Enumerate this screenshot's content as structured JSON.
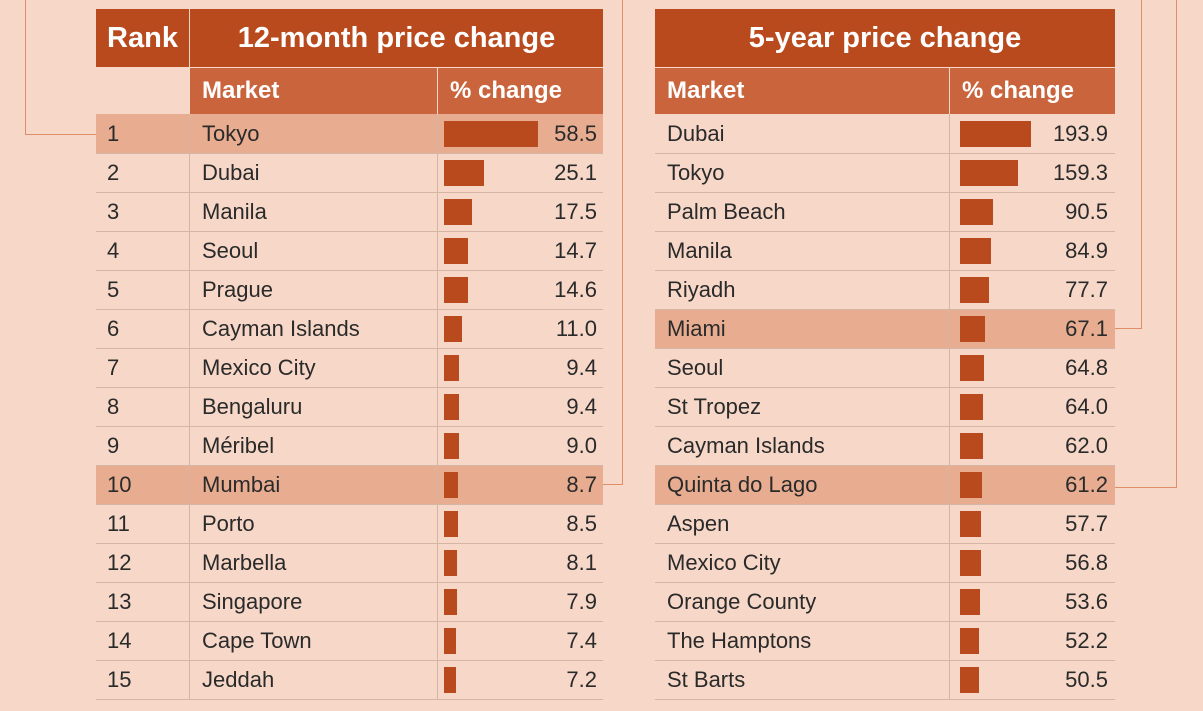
{
  "colors": {
    "accent": "#b94a1e",
    "subheader": "#c9643c",
    "highlight": "#e8ad91",
    "background": "#f7d8c8"
  },
  "left_table": {
    "rank_header": "Rank",
    "title": "12-month price change",
    "market_label": "Market",
    "change_label": "% change"
  },
  "right_table": {
    "title": "5-year price change",
    "market_label": "Market",
    "change_label": "% change"
  },
  "chart_data": [
    {
      "type": "bar",
      "title": "12-month price change",
      "categories": [
        "Tokyo",
        "Dubai",
        "Manila",
        "Seoul",
        "Prague",
        "Cayman Islands",
        "Mexico City",
        "Bengaluru",
        "Méribel",
        "Mumbai",
        "Porto",
        "Marbella",
        "Singapore",
        "Cape Town",
        "Jeddah"
      ],
      "ranks": [
        "1",
        "2",
        "3",
        "4",
        "5",
        "6",
        "7",
        "8",
        "9",
        "10",
        "11",
        "12",
        "13",
        "14",
        "15"
      ],
      "values": [
        58.5,
        25.1,
        17.5,
        14.7,
        14.6,
        11.0,
        9.4,
        9.4,
        9.0,
        8.7,
        8.5,
        8.1,
        7.9,
        7.4,
        7.2
      ],
      "labels": [
        "58.5",
        "25.1",
        "17.5",
        "14.7",
        "14.6",
        "11.0",
        "9.4",
        "9.4",
        "9.0",
        "8.7",
        "8.5",
        "8.1",
        "7.9",
        "7.4",
        "7.2"
      ],
      "highlighted": [
        "Tokyo",
        "Mumbai"
      ],
      "ylim": [
        0,
        60
      ]
    },
    {
      "type": "bar",
      "title": "5-year price change",
      "categories": [
        "Dubai",
        "Tokyo",
        "Palm Beach",
        "Manila",
        "Riyadh",
        "Miami",
        "Seoul",
        "St Tropez",
        "Cayman Islands",
        "Quinta do Lago",
        "Aspen",
        "Mexico City",
        "Orange County",
        "The Hamptons",
        "St Barts"
      ],
      "values": [
        193.9,
        159.3,
        90.5,
        84.9,
        77.7,
        67.1,
        64.8,
        64.0,
        62.0,
        61.2,
        57.7,
        56.8,
        53.6,
        52.2,
        50.5
      ],
      "labels": [
        "193.9",
        "159.3",
        "90.5",
        "84.9",
        "77.7",
        "67.1",
        "64.8",
        "64.0",
        "62.0",
        "61.2",
        "57.7",
        "56.8",
        "53.6",
        "52.2",
        "50.5"
      ],
      "highlighted": [
        "Miami",
        "Quinta do Lago"
      ],
      "ylim": [
        0,
        200
      ]
    }
  ]
}
